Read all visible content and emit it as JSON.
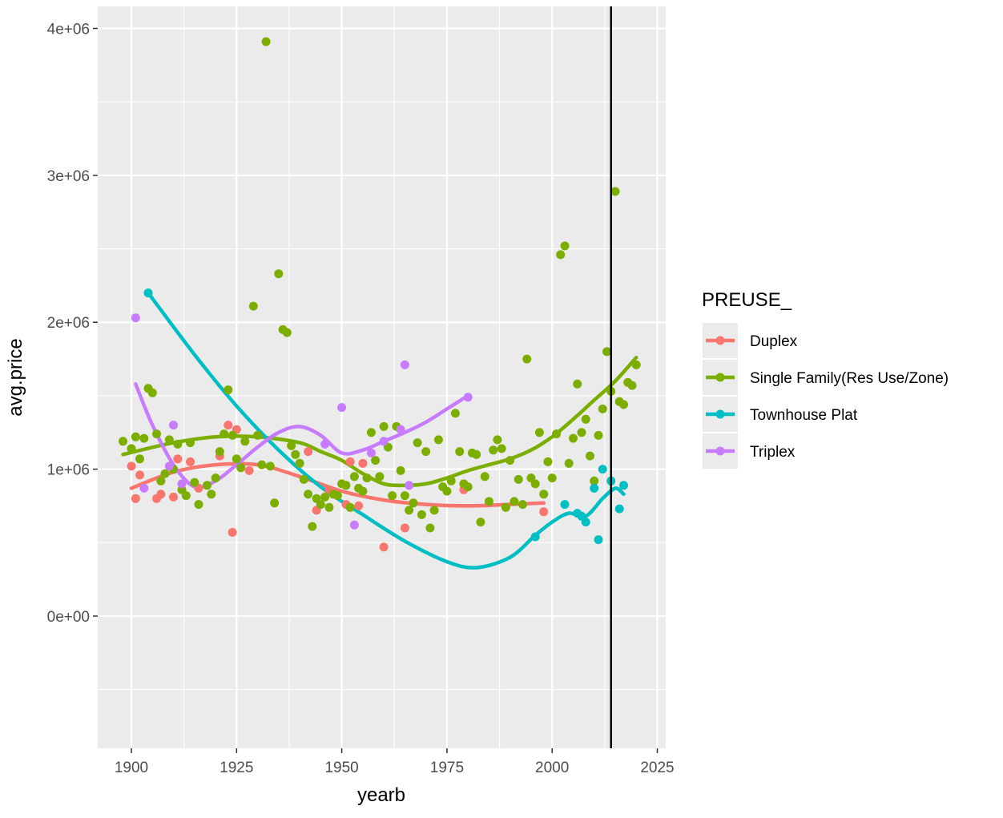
{
  "chart_data": {
    "type": "scatter",
    "xlabel": "yearb",
    "ylabel": "avg.price",
    "xlim": [
      1892,
      2027
    ],
    "ylim": [
      -900000,
      4150000
    ],
    "x_ticks": [
      1900,
      1925,
      1950,
      1975,
      2000,
      2025
    ],
    "x_tick_labels": [
      "1900",
      "1925",
      "1950",
      "1975",
      "2000",
      "2025"
    ],
    "y_ticks": [
      0,
      1000000,
      2000000,
      3000000,
      4000000
    ],
    "y_tick_labels": [
      "0e+00",
      "1e+06",
      "2e+06",
      "3e+06",
      "4e+06"
    ],
    "grid": true,
    "vline_x": 2014,
    "legend": {
      "title": "PREUSE_",
      "placement": "right",
      "entries": [
        "Duplex",
        "Single Family(Res Use/Zone)",
        "Townhouse Plat",
        "Triplex"
      ]
    },
    "series": [
      {
        "name": "Duplex",
        "color": "#F8766D",
        "points": [
          [
            1900,
            1020000
          ],
          [
            1901,
            800000
          ],
          [
            1902,
            960000
          ],
          [
            1906,
            800000
          ],
          [
            1907,
            830000
          ],
          [
            1910,
            810000
          ],
          [
            1911,
            1070000
          ],
          [
            1914,
            1050000
          ],
          [
            1916,
            870000
          ],
          [
            1921,
            1090000
          ],
          [
            1923,
            1300000
          ],
          [
            1924,
            570000
          ],
          [
            1925,
            1270000
          ],
          [
            1928,
            990000
          ],
          [
            1942,
            1120000
          ],
          [
            1944,
            720000
          ],
          [
            1947,
            860000
          ],
          [
            1951,
            760000
          ],
          [
            1952,
            1050000
          ],
          [
            1954,
            750000
          ],
          [
            1955,
            1040000
          ],
          [
            1960,
            470000
          ],
          [
            1965,
            600000
          ],
          [
            1979,
            860000
          ],
          [
            1998,
            710000
          ]
        ],
        "trend": [
          [
            1900,
            870000
          ],
          [
            1910,
            980000
          ],
          [
            1920,
            1030000
          ],
          [
            1930,
            1030000
          ],
          [
            1940,
            950000
          ],
          [
            1950,
            850000
          ],
          [
            1960,
            790000
          ],
          [
            1970,
            760000
          ],
          [
            1980,
            750000
          ],
          [
            1990,
            760000
          ],
          [
            1998,
            770000
          ]
        ]
      },
      {
        "name": "Single Family(Res Use/Zone)",
        "color": "#7CAE00",
        "points": [
          [
            1898,
            1190000
          ],
          [
            1900,
            1140000
          ],
          [
            1901,
            1220000
          ],
          [
            1902,
            1070000
          ],
          [
            1903,
            1210000
          ],
          [
            1904,
            1550000
          ],
          [
            1905,
            1520000
          ],
          [
            1906,
            1240000
          ],
          [
            1907,
            920000
          ],
          [
            1908,
            970000
          ],
          [
            1909,
            1200000
          ],
          [
            1910,
            1000000
          ],
          [
            1911,
            1170000
          ],
          [
            1912,
            860000
          ],
          [
            1913,
            820000
          ],
          [
            1914,
            1180000
          ],
          [
            1915,
            910000
          ],
          [
            1916,
            760000
          ],
          [
            1918,
            890000
          ],
          [
            1919,
            830000
          ],
          [
            1920,
            940000
          ],
          [
            1921,
            1120000
          ],
          [
            1922,
            1240000
          ],
          [
            1923,
            1540000
          ],
          [
            1924,
            1230000
          ],
          [
            1925,
            1070000
          ],
          [
            1926,
            1010000
          ],
          [
            1927,
            1190000
          ],
          [
            1929,
            2110000
          ],
          [
            1930,
            1230000
          ],
          [
            1931,
            1030000
          ],
          [
            1932,
            3910000
          ],
          [
            1933,
            1020000
          ],
          [
            1934,
            770000
          ],
          [
            1935,
            2330000
          ],
          [
            1936,
            1950000
          ],
          [
            1937,
            1930000
          ],
          [
            1938,
            1160000
          ],
          [
            1939,
            1100000
          ],
          [
            1940,
            1040000
          ],
          [
            1941,
            930000
          ],
          [
            1942,
            830000
          ],
          [
            1943,
            610000
          ],
          [
            1944,
            800000
          ],
          [
            1945,
            760000
          ],
          [
            1946,
            810000
          ],
          [
            1947,
            740000
          ],
          [
            1948,
            830000
          ],
          [
            1949,
            820000
          ],
          [
            1950,
            900000
          ],
          [
            1951,
            890000
          ],
          [
            1952,
            740000
          ],
          [
            1953,
            950000
          ],
          [
            1954,
            870000
          ],
          [
            1955,
            850000
          ],
          [
            1956,
            940000
          ],
          [
            1957,
            1250000
          ],
          [
            1958,
            1060000
          ],
          [
            1959,
            950000
          ],
          [
            1960,
            1290000
          ],
          [
            1961,
            1150000
          ],
          [
            1962,
            820000
          ],
          [
            1963,
            1290000
          ],
          [
            1964,
            990000
          ],
          [
            1965,
            820000
          ],
          [
            1966,
            720000
          ],
          [
            1967,
            770000
          ],
          [
            1968,
            1180000
          ],
          [
            1969,
            690000
          ],
          [
            1970,
            1120000
          ],
          [
            1971,
            600000
          ],
          [
            1972,
            720000
          ],
          [
            1973,
            1200000
          ],
          [
            1974,
            880000
          ],
          [
            1975,
            850000
          ],
          [
            1976,
            920000
          ],
          [
            1977,
            1380000
          ],
          [
            1978,
            1120000
          ],
          [
            1979,
            900000
          ],
          [
            1980,
            880000
          ],
          [
            1981,
            1110000
          ],
          [
            1982,
            1100000
          ],
          [
            1983,
            640000
          ],
          [
            1984,
            950000
          ],
          [
            1985,
            780000
          ],
          [
            1986,
            1130000
          ],
          [
            1987,
            1200000
          ],
          [
            1988,
            1140000
          ],
          [
            1989,
            740000
          ],
          [
            1990,
            1060000
          ],
          [
            1991,
            780000
          ],
          [
            1992,
            930000
          ],
          [
            1993,
            760000
          ],
          [
            1994,
            1750000
          ],
          [
            1995,
            940000
          ],
          [
            1996,
            900000
          ],
          [
            1997,
            1250000
          ],
          [
            1998,
            830000
          ],
          [
            1999,
            1050000
          ],
          [
            2000,
            940000
          ],
          [
            2001,
            1240000
          ],
          [
            2002,
            2460000
          ],
          [
            2003,
            2520000
          ],
          [
            2004,
            1040000
          ],
          [
            2005,
            1210000
          ],
          [
            2006,
            1580000
          ],
          [
            2007,
            1250000
          ],
          [
            2008,
            1340000
          ],
          [
            2009,
            1090000
          ],
          [
            2010,
            920000
          ],
          [
            2011,
            1230000
          ],
          [
            2012,
            1410000
          ],
          [
            2013,
            1800000
          ],
          [
            2014,
            1530000
          ],
          [
            2015,
            2890000
          ],
          [
            2016,
            1460000
          ],
          [
            2017,
            1440000
          ],
          [
            2018,
            1590000
          ],
          [
            2019,
            1570000
          ],
          [
            2020,
            1710000
          ]
        ],
        "trend": [
          [
            1898,
            1100000
          ],
          [
            1910,
            1180000
          ],
          [
            1920,
            1220000
          ],
          [
            1930,
            1220000
          ],
          [
            1940,
            1180000
          ],
          [
            1945,
            1120000
          ],
          [
            1950,
            1060000
          ],
          [
            1955,
            970000
          ],
          [
            1960,
            900000
          ],
          [
            1965,
            890000
          ],
          [
            1970,
            900000
          ],
          [
            1975,
            940000
          ],
          [
            1980,
            990000
          ],
          [
            1985,
            1030000
          ],
          [
            1990,
            1070000
          ],
          [
            1995,
            1130000
          ],
          [
            2000,
            1220000
          ],
          [
            2005,
            1340000
          ],
          [
            2010,
            1470000
          ],
          [
            2015,
            1600000
          ],
          [
            2020,
            1760000
          ]
        ]
      },
      {
        "name": "Townhouse Plat",
        "color": "#00BFC4",
        "points": [
          [
            1904,
            2200000
          ],
          [
            1996,
            540000
          ],
          [
            2003,
            760000
          ],
          [
            2006,
            700000
          ],
          [
            2007,
            680000
          ],
          [
            2008,
            640000
          ],
          [
            2010,
            870000
          ],
          [
            2011,
            520000
          ],
          [
            2012,
            1000000
          ],
          [
            2014,
            920000
          ],
          [
            2016,
            730000
          ],
          [
            2017,
            890000
          ]
        ],
        "trend": [
          [
            1904,
            2200000
          ],
          [
            1915,
            1780000
          ],
          [
            1925,
            1430000
          ],
          [
            1935,
            1130000
          ],
          [
            1945,
            880000
          ],
          [
            1955,
            690000
          ],
          [
            1965,
            510000
          ],
          [
            1975,
            370000
          ],
          [
            1982,
            330000
          ],
          [
            1990,
            400000
          ],
          [
            1996,
            550000
          ],
          [
            2000,
            640000
          ],
          [
            2004,
            700000
          ],
          [
            2008,
            680000
          ],
          [
            2012,
            800000
          ],
          [
            2015,
            870000
          ],
          [
            2017,
            830000
          ]
        ]
      },
      {
        "name": "Triplex",
        "color": "#C77CFF",
        "points": [
          [
            1901,
            2030000
          ],
          [
            1903,
            870000
          ],
          [
            1909,
            1020000
          ],
          [
            1910,
            1300000
          ],
          [
            1912,
            900000
          ],
          [
            1946,
            1170000
          ],
          [
            1950,
            1420000
          ],
          [
            1953,
            620000
          ],
          [
            1957,
            1110000
          ],
          [
            1960,
            1190000
          ],
          [
            1964,
            1270000
          ],
          [
            1965,
            1710000
          ],
          [
            1966,
            890000
          ],
          [
            1980,
            1490000
          ]
        ],
        "trend": [
          [
            1901,
            1580000
          ],
          [
            1905,
            1300000
          ],
          [
            1910,
            1030000
          ],
          [
            1915,
            880000
          ],
          [
            1920,
            920000
          ],
          [
            1925,
            1030000
          ],
          [
            1930,
            1150000
          ],
          [
            1935,
            1250000
          ],
          [
            1940,
            1290000
          ],
          [
            1945,
            1230000
          ],
          [
            1950,
            1110000
          ],
          [
            1955,
            1130000
          ],
          [
            1960,
            1190000
          ],
          [
            1965,
            1250000
          ],
          [
            1970,
            1320000
          ],
          [
            1975,
            1410000
          ],
          [
            1980,
            1500000
          ]
        ]
      }
    ]
  }
}
